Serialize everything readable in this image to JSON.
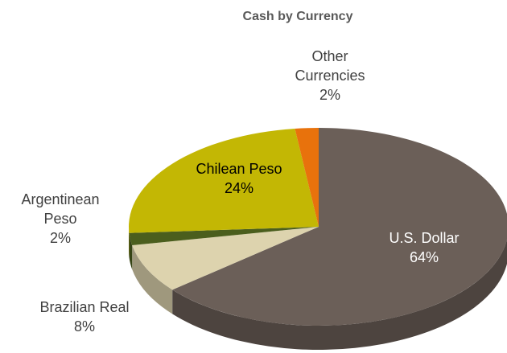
{
  "chart_data": {
    "type": "pie",
    "title": "Cash by Currency",
    "categories": [
      "U.S. Dollar",
      "Brazilian Real",
      "Argentinean Peso",
      "Chilean Peso",
      "Other Currencies"
    ],
    "values": [
      64,
      8,
      2,
      24,
      2
    ],
    "value_labels": [
      "64%",
      "8%",
      "2%",
      "24%",
      "2%"
    ],
    "colors": [
      "#6b5f58",
      "#ddd3ae",
      "#4b5e1d",
      "#c3b704",
      "#e8720c"
    ]
  }
}
